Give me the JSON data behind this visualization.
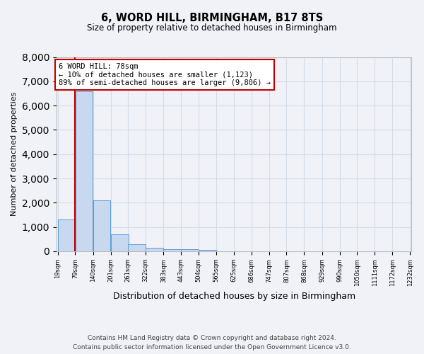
{
  "title": "6, WORD HILL, BIRMINGHAM, B17 8TS",
  "subtitle": "Size of property relative to detached houses in Birmingham",
  "xlabel": "Distribution of detached houses by size in Birmingham",
  "ylabel": "Number of detached properties",
  "footnote1": "Contains HM Land Registry data © Crown copyright and database right 2024.",
  "footnote2": "Contains public sector information licensed under the Open Government Licence v3.0.",
  "annotation_title": "6 WORD HILL: 78sqm",
  "annotation_line1": "← 10% of detached houses are smaller (1,123)",
  "annotation_line2": "89% of semi-detached houses are larger (9,806) →",
  "bar_left_edges": [
    19,
    79,
    140,
    201,
    261,
    322,
    383,
    443,
    504,
    565,
    625,
    686,
    747,
    807,
    868,
    929,
    990,
    1050,
    1111,
    1172
  ],
  "bar_widths": [
    61,
    61,
    61,
    61,
    61,
    61,
    61,
    61,
    61,
    61,
    61,
    61,
    61,
    61,
    61,
    61,
    61,
    61,
    61,
    61
  ],
  "bar_heights": [
    1300,
    6600,
    2100,
    700,
    300,
    150,
    90,
    90,
    50,
    0,
    0,
    0,
    0,
    0,
    0,
    0,
    0,
    0,
    0,
    0
  ],
  "tick_labels": [
    "19sqm",
    "79sqm",
    "140sqm",
    "201sqm",
    "261sqm",
    "322sqm",
    "383sqm",
    "443sqm",
    "504sqm",
    "565sqm",
    "625sqm",
    "686sqm",
    "747sqm",
    "807sqm",
    "868sqm",
    "929sqm",
    "990sqm",
    "1050sqm",
    "1111sqm",
    "1172sqm",
    "1232sqm"
  ],
  "bar_color": "#c8d8ee",
  "bar_edge_color": "#5b9bd5",
  "vline_color": "#c00000",
  "annotation_box_color": "#c00000",
  "ylim": [
    0,
    8000
  ],
  "yticks": [
    0,
    1000,
    2000,
    3000,
    4000,
    5000,
    6000,
    7000,
    8000
  ],
  "grid_color": "#d4dce8",
  "background_color": "#f0f2f7",
  "plot_bg_color": "#f0f2f7"
}
